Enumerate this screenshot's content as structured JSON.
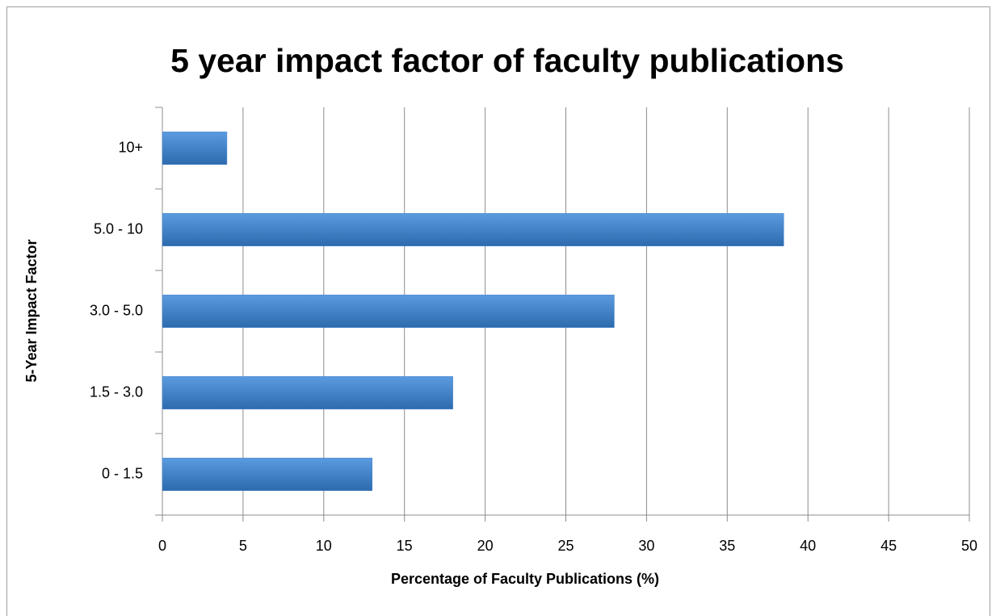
{
  "chart_data": {
    "type": "hbar",
    "title": "5 year impact factor of faculty publications",
    "xlabel": "Percentage of Faculty Publications (%)",
    "ylabel": "5-Year Impact Factor",
    "categories": [
      "0 - 1.5",
      "1.5 - 3.0",
      "3.0 - 5.0",
      "5.0 - 10",
      "10+"
    ],
    "values": [
      13,
      18,
      28,
      38.5,
      4
    ],
    "color": "#4a86c8",
    "xlim": [
      0,
      50
    ],
    "xticks": [
      0,
      5,
      10,
      15,
      20,
      25,
      30,
      35,
      40,
      45,
      50
    ],
    "grid": true
  }
}
